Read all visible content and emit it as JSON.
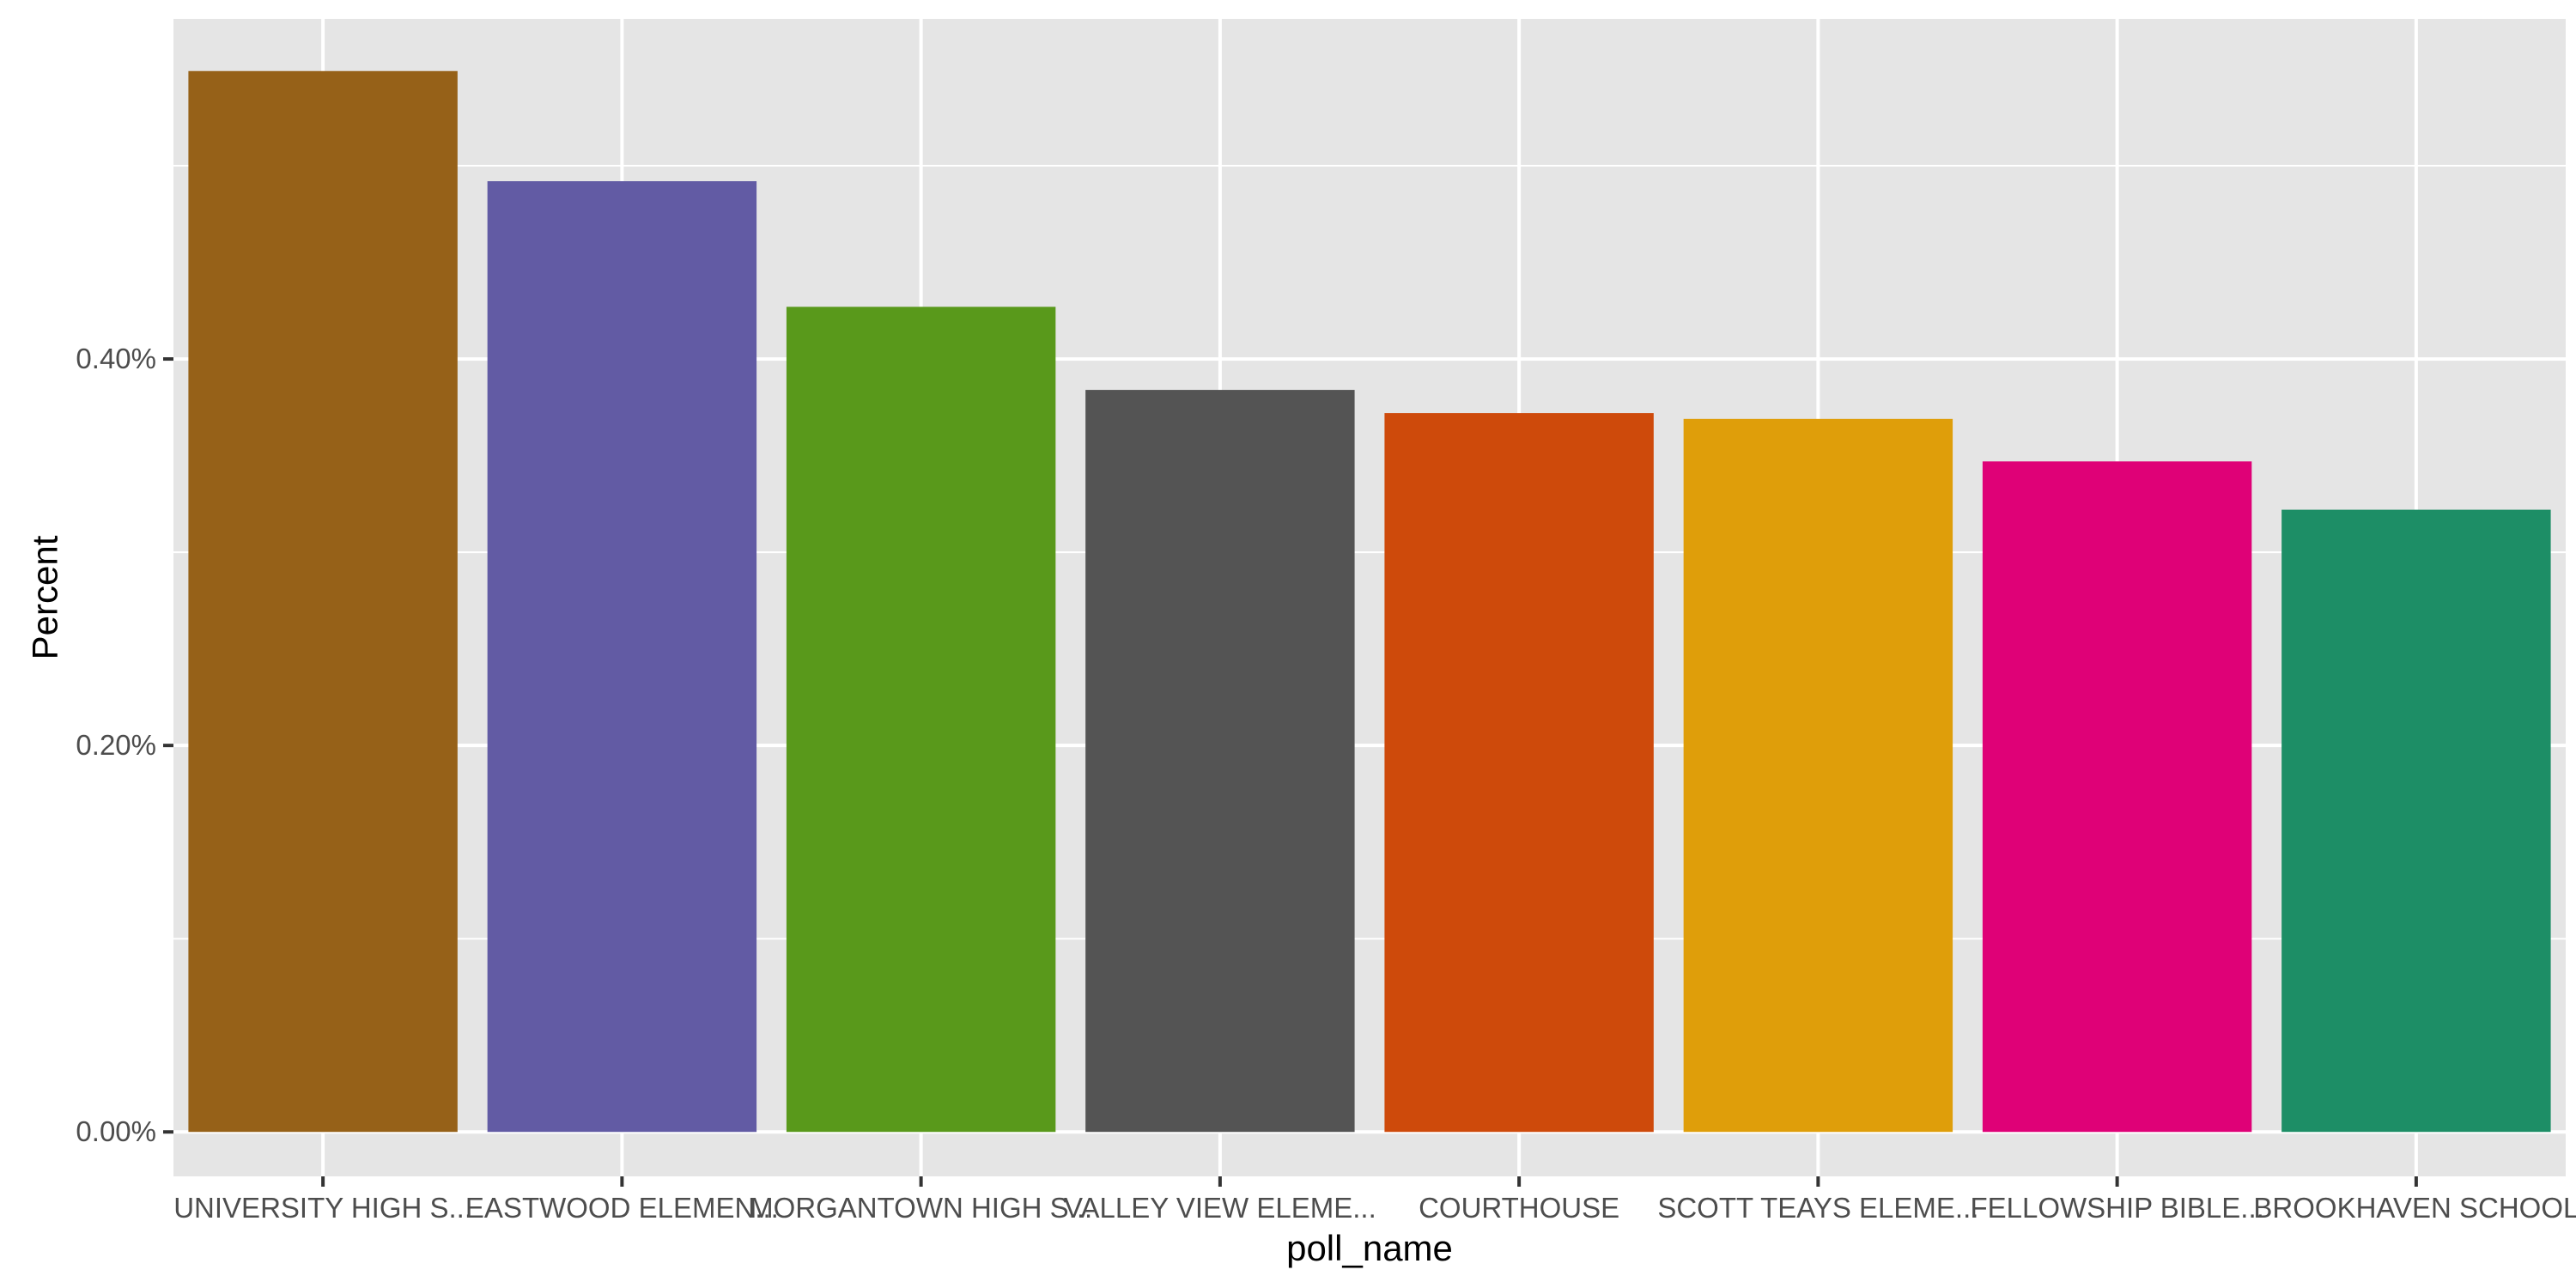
{
  "chart_data": {
    "type": "bar",
    "title": "",
    "xlabel": "poll_name",
    "ylabel": "Percent",
    "categories": [
      "UNIVERSITY HIGH S...",
      "EASTWOOD ELEMEN...",
      "MORGANTOWN HIGH S...",
      "VALLEY VIEW ELEME...",
      "COURTHOUSE",
      "SCOTT TEAYS ELEME...",
      "FELLOWSHIP BIBLE...",
      "BROOKHAVEN SCHOOL"
    ],
    "values": [
      0.549,
      0.492,
      0.427,
      0.384,
      0.372,
      0.369,
      0.347,
      0.322
    ],
    "colors": [
      "#966118",
      "#625BA4",
      "#59991B",
      "#545454",
      "#CE4A0B",
      "#DF9E0A",
      "#DF0177",
      "#1D8E66"
    ],
    "ylim": [
      -0.023,
      0.576
    ],
    "yticks": [
      0.0,
      0.2,
      0.4
    ],
    "ytick_labels": [
      "0.00%",
      "0.20%",
      "0.40%"
    ],
    "panel_background": "#E5E5E5",
    "gridline_color": "#FFFFFF",
    "grid": true,
    "legend": "none"
  }
}
